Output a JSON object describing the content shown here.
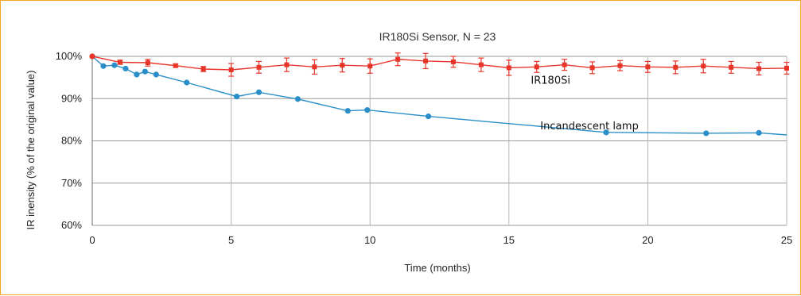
{
  "chart_data": {
    "type": "line",
    "title": "IR180Si Sensor, N = 23",
    "xlabel": "Time (months)",
    "ylabel": "IR inensity (% of the original value)",
    "xlim": [
      0,
      25
    ],
    "ylim": [
      60,
      100
    ],
    "x_ticks": [
      0,
      5,
      10,
      15,
      20,
      25
    ],
    "y_ticks": [
      60,
      70,
      80,
      90,
      100
    ],
    "y_tick_labels": [
      "60%",
      "70%",
      "80%",
      "90%",
      "100%"
    ],
    "grid": true,
    "series": [
      {
        "name": "IR180Si",
        "color": "#e8352a",
        "x": [
          0,
          1,
          2,
          3,
          4,
          5,
          6,
          7,
          8,
          9,
          10,
          11,
          12,
          13,
          14,
          15,
          16,
          17,
          18,
          19,
          20,
          21,
          22,
          23,
          24,
          25
        ],
        "y": [
          100,
          98.6,
          98.5,
          97.8,
          97.0,
          96.8,
          97.4,
          98.0,
          97.5,
          97.9,
          97.7,
          99.3,
          98.9,
          98.7,
          98.0,
          97.3,
          97.5,
          98.0,
          97.3,
          97.8,
          97.5,
          97.4,
          97.7,
          97.4,
          97.1,
          97.2
        ],
        "err": [
          0,
          0.5,
          0.8,
          0.4,
          0.6,
          1.5,
          1.4,
          1.6,
          1.7,
          1.6,
          1.7,
          1.5,
          1.8,
          1.3,
          1.6,
          1.8,
          1.3,
          1.3,
          1.4,
          1.2,
          1.3,
          1.5,
          1.6,
          1.4,
          1.5,
          1.4
        ]
      },
      {
        "name": "Incandescent lamp",
        "color": "#2a8fc8",
        "x": [
          0,
          0.4,
          0.8,
          1.2,
          1.6,
          1.9,
          2.3,
          3.4,
          5.2,
          6.0,
          7.4,
          9.2,
          9.9,
          12.1,
          18.5,
          22.1,
          24.0,
          25.0
        ],
        "y": [
          100,
          97.7,
          97.9,
          97.1,
          95.7,
          96.4,
          95.7,
          93.8,
          90.5,
          91.5,
          89.9,
          87.1,
          87.3,
          85.8,
          82.0,
          81.8,
          81.9,
          81.4
        ],
        "markers": [
          true,
          true,
          true,
          true,
          true,
          true,
          true,
          true,
          true,
          true,
          true,
          true,
          true,
          true,
          true,
          true,
          true,
          false
        ]
      }
    ],
    "annotations": [
      {
        "text": "IR180Si",
        "at_x": 16.5,
        "at_y": 93.5
      },
      {
        "text": "Incandescent lamp",
        "at_x": 17.9,
        "at_y": 82.7
      }
    ]
  }
}
